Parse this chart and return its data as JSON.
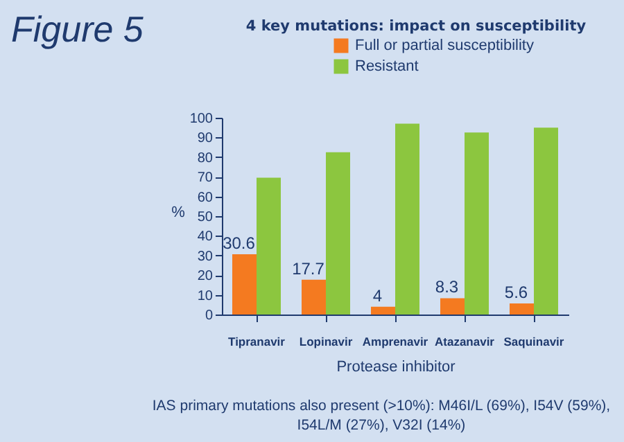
{
  "chart_data": {
    "type": "bar",
    "title": "4 key mutations: impact on susceptibility",
    "xlabel": "Protease inhibitor",
    "ylabel": "%",
    "annotations": [
      "Figure 5",
      "IAS primary mutations also present (>10%): M46I/L (69%), I54V (59%), I54L/M (27%), V32I (14%)"
    ],
    "categories": [
      "Tipranavir",
      "Lopinavir",
      "Amprenavir",
      "Atazanavir",
      "Saquinavir"
    ],
    "series": [
      {
        "name": "Full or partial susceptibility",
        "color": "#f47a20",
        "values": [
          30.6,
          17.7,
          4,
          8.3,
          5.6
        ],
        "value_labels": [
          "30.6",
          "17.7",
          "4",
          "8.3",
          "5.6"
        ]
      },
      {
        "name": "Resistant",
        "color": "#8cc63f",
        "values": [
          69.5,
          82.5,
          97,
          92.5,
          95
        ]
      }
    ],
    "ylim": [
      0,
      100
    ],
    "yticks": [
      0,
      10,
      20,
      30,
      40,
      50,
      60,
      70,
      80,
      90,
      100
    ],
    "grid": false,
    "legend": "top right"
  }
}
